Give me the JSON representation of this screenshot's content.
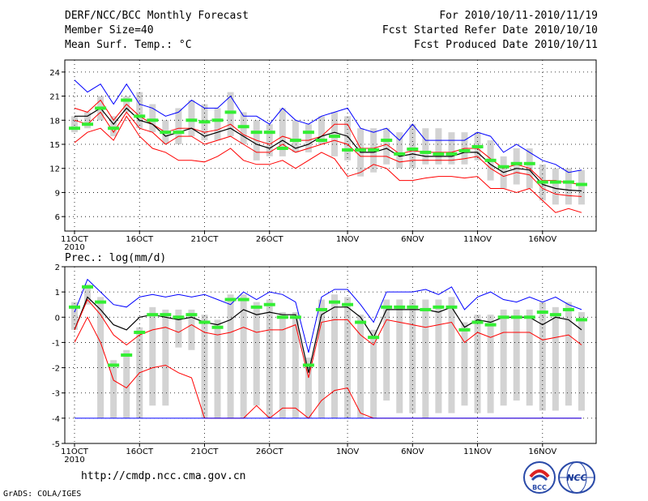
{
  "header": {
    "title": "DERF/NCC/BCC Monthly Forecast",
    "member": "Member Size=40",
    "variable": "Mean Surf. Temp.: °C",
    "period": "For 2010/10/11-2010/11/19",
    "started": "Fcst Started Refer Date 2010/10/10",
    "produced": "Fcst Produced Date 2010/10/11"
  },
  "footer": {
    "url": "http://cmdp.ncc.cma.gov.cn",
    "grads": "GrADS: COLA/IGES",
    "logo_bcc": "BCC",
    "logo_ncc": "NCC"
  },
  "colors": {
    "max": "#0000ff",
    "min": "#ff0000",
    "bar": "#d3d3d3",
    "obs": "#33ee33",
    "mean": "#000000"
  },
  "chart_data": [
    {
      "type": "line",
      "title": "Mean Surf. Temp.: °C",
      "ylim": [
        4.2,
        25.5
      ],
      "yticks": [
        6,
        9,
        12,
        15,
        18,
        21,
        24
      ],
      "x_labels": [
        "11OCT\n2010",
        "16OCT",
        "21OCT",
        "26OCT",
        "1NOV",
        "6NOV",
        "11NOV",
        "16NOV"
      ],
      "x_label_days": [
        1,
        6,
        11,
        16,
        22,
        27,
        32,
        37
      ],
      "days": 40,
      "series": [
        {
          "name": "max",
          "values": [
            23,
            21.5,
            22.5,
            20,
            22.5,
            20,
            19.5,
            18.5,
            19,
            20.5,
            19.5,
            19.5,
            21,
            18.5,
            18.5,
            17.5,
            19.5,
            18,
            17.5,
            18.5,
            19,
            19.5,
            17,
            16.5,
            17,
            15.5,
            17.5,
            15.5,
            15.5,
            15.5,
            15.5,
            16.5,
            16,
            14,
            15,
            14,
            13,
            12.5,
            11.5,
            11.8
          ]
        },
        {
          "name": "upper",
          "values": [
            19.5,
            19,
            20.5,
            18,
            20,
            18.5,
            17.5,
            16.5,
            17,
            17,
            16.5,
            16.8,
            17.5,
            16.2,
            15.5,
            15,
            16,
            15.5,
            15.5,
            16,
            17.5,
            17.5,
            14.5,
            14.5,
            15,
            13.8,
            14.2,
            14,
            14,
            14,
            14.5,
            14.5,
            13.2,
            12,
            12.5,
            12,
            10.5,
            10.5,
            10.2,
            10
          ]
        },
        {
          "name": "mean",
          "values": [
            18.5,
            18.5,
            19.5,
            17.5,
            19.5,
            18,
            17.5,
            16,
            16.5,
            17,
            16,
            16.5,
            17,
            16,
            15,
            14.5,
            15.5,
            14.5,
            15,
            16,
            16.5,
            16,
            14,
            14,
            14.5,
            13.5,
            13.8,
            13.5,
            13.5,
            13.5,
            14,
            14,
            12.5,
            11.5,
            12,
            11.8,
            10,
            9.5,
            9.3,
            9.2
          ]
        },
        {
          "name": "lower",
          "values": [
            18,
            17.5,
            19,
            16.5,
            19,
            17,
            16.5,
            15,
            16,
            16,
            15,
            15.5,
            16,
            15,
            14,
            14,
            15,
            14,
            14.5,
            15,
            15.5,
            15,
            13.5,
            13.5,
            13.5,
            12.8,
            13,
            13,
            13,
            13,
            13.2,
            13.5,
            12,
            11,
            11.5,
            11.2,
            9.5,
            8.8,
            8.6,
            8.5
          ]
        },
        {
          "name": "min",
          "values": [
            15.2,
            16.5,
            17,
            15.5,
            18.5,
            16,
            14.5,
            14,
            13,
            13,
            12.8,
            13.5,
            14.5,
            13,
            12.5,
            12.5,
            13,
            12,
            13,
            14,
            13.2,
            11,
            11.5,
            12.5,
            12,
            10.5,
            10.5,
            10.8,
            11,
            11,
            10.8,
            11,
            9.5,
            9.5,
            9,
            9.5,
            8,
            6.5,
            7,
            6.5
          ]
        },
        {
          "name": "obs",
          "values": [
            17,
            17.5,
            19.5,
            17,
            20.5,
            18.5,
            18,
            16.5,
            16.5,
            18,
            17.8,
            18,
            19,
            17.2,
            16.5,
            16.5,
            14.5,
            15.5,
            16.5,
            15.5,
            16,
            14.3,
            14.3,
            14.3,
            15.5,
            13.8,
            14.4,
            14,
            13.8,
            13.8,
            14.2,
            14.7,
            13,
            12.2,
            12.6,
            12.6,
            10.3,
            10.3,
            10.3,
            10
          ]
        }
      ],
      "bars": {
        "low": [
          16.5,
          17,
          18,
          16,
          19,
          17,
          16.5,
          15,
          15,
          16,
          15.5,
          15.5,
          16,
          15,
          13,
          13.5,
          13.5,
          14,
          14,
          15,
          13.5,
          13,
          11,
          11.5,
          12.5,
          12,
          12,
          12.5,
          12.5,
          12.5,
          12.5,
          13,
          10.5,
          9.5,
          10,
          9.5,
          8,
          7.5,
          7.5,
          7.5
        ],
        "high": [
          18.5,
          19,
          21,
          18.5,
          21,
          21.5,
          20,
          18,
          19.5,
          20.5,
          20,
          19.5,
          21.5,
          19,
          18,
          17.5,
          19.5,
          18,
          17.5,
          18.5,
          19,
          18.5,
          17,
          17,
          17,
          16.5,
          17.5,
          17,
          17,
          16.5,
          16.5,
          16.5,
          15.5,
          13.5,
          14.5,
          14.5,
          12.5,
          12,
          12,
          11.8
        ]
      }
    },
    {
      "type": "line",
      "title": "Prec.: log(mm/d)",
      "ylim": [
        -5,
        2
      ],
      "yticks": [
        -5,
        -4,
        -3,
        -2,
        -1,
        0,
        1,
        2
      ],
      "x_labels": [
        "11OCT\n2010",
        "16OCT",
        "21OCT",
        "26OCT",
        "1NOV",
        "6NOV",
        "11NOV",
        "16NOV"
      ],
      "x_label_days": [
        1,
        6,
        11,
        16,
        22,
        27,
        32,
        37
      ],
      "days": 40,
      "series": [
        {
          "name": "max",
          "values": [
            0.2,
            1.5,
            1,
            0.5,
            0.4,
            0.8,
            0.9,
            0.8,
            0.9,
            0.8,
            0.9,
            0.7,
            0.5,
            1,
            0.7,
            1,
            0.9,
            0.6,
            -1.4,
            0.8,
            1.1,
            1.1,
            0.5,
            -0.2,
            1,
            1,
            1,
            1.1,
            0.9,
            1.2,
            0.3,
            0.8,
            1,
            0.7,
            0.6,
            0.8,
            0.6,
            0.8,
            0.5,
            0.3
          ]
        },
        {
          "name": "mean",
          "values": [
            -0.5,
            0.8,
            0.3,
            -0.3,
            -0.5,
            0,
            0.1,
            0,
            -0.1,
            0,
            -0.2,
            -0.3,
            -0.1,
            0.3,
            0.1,
            0.2,
            0.1,
            0.1,
            -2.2,
            0.1,
            0.4,
            0.4,
            0,
            -0.8,
            0.3,
            0.3,
            0.3,
            0.3,
            0.2,
            0.4,
            -0.4,
            -0.1,
            -0.2,
            0,
            0,
            0,
            -0.3,
            0,
            -0.1,
            -0.5
          ]
        },
        {
          "name": "lower",
          "values": [
            -0.5,
            0.7,
            0.1,
            -0.7,
            -1.1,
            -0.7,
            -0.5,
            -0.4,
            -0.6,
            -0.3,
            -0.6,
            -0.7,
            -0.6,
            -0.4,
            -0.6,
            -0.5,
            -0.5,
            -0.3,
            -2.4,
            -0.2,
            -0.1,
            -0.1,
            -0.7,
            -1.1,
            -0.1,
            -0.2,
            -0.3,
            -0.4,
            -0.3,
            -0.2,
            -1,
            -0.6,
            -0.8,
            -0.6,
            -0.6,
            -0.6,
            -0.9,
            -0.8,
            -0.7,
            -1.1
          ]
        },
        {
          "name": "min",
          "values": [
            -1,
            0,
            -1,
            -2.5,
            -2.8,
            -2.2,
            -2,
            -1.9,
            -2.2,
            -2.4,
            -4,
            -4,
            -4,
            -4,
            -3.5,
            -4,
            -3.6,
            -3.6,
            -4,
            -3.3,
            -2.9,
            -2.8,
            -3.8,
            -4,
            -4,
            -4,
            -4,
            -4,
            -4,
            -4,
            -4,
            -4,
            -4,
            -4,
            -4,
            -4,
            -4,
            -4,
            -4,
            -4
          ]
        },
        {
          "name": "floor",
          "values": [
            -4,
            -4,
            -4,
            -4,
            -4,
            -4,
            -4,
            -4,
            -4,
            -4,
            -4,
            -4,
            -4,
            -4,
            -4,
            -4,
            -4,
            -4,
            -4,
            -4,
            -4,
            -4,
            -4,
            -4,
            -4,
            -4,
            -4,
            -4,
            -4,
            -4,
            -4,
            -4,
            -4,
            -4,
            -4,
            -4,
            -4,
            -4,
            -4,
            -4
          ]
        },
        {
          "name": "obs",
          "values": [
            0.4,
            1.2,
            0.6,
            -1.9,
            -1.5,
            -0.6,
            0.1,
            0.1,
            0,
            0.1,
            -0.2,
            -0.4,
            0.7,
            0.7,
            0.4,
            0.5,
            0,
            0,
            -1.9,
            0.3,
            0.6,
            0.5,
            -0.2,
            -0.8,
            0.4,
            0.4,
            0.4,
            0.3,
            0.4,
            0.4,
            -0.5,
            -0.2,
            -0.3,
            0,
            0,
            0,
            0.2,
            0.1,
            0.3,
            -0.1
          ]
        }
      ],
      "bars": {
        "low": [
          -0.5,
          0.5,
          -4,
          -4,
          -4,
          -4,
          -3.5,
          -3.5,
          -1.2,
          -1.3,
          -4,
          -4,
          -4,
          -4,
          -3.5,
          -4,
          -4,
          -4,
          -4,
          -4,
          -4,
          -4,
          -4,
          -4,
          -3.3,
          -3.8,
          -3.8,
          -4,
          -3.8,
          -3.8,
          -3.5,
          -3.8,
          -3.8,
          -3.5,
          -3.3,
          -3.5,
          -3.7,
          -3.7,
          -3.5,
          -3.7
        ],
        "high": [
          0.6,
          1.3,
          0.8,
          -1.7,
          -1.3,
          -0.4,
          0.4,
          0.3,
          0.3,
          0.3,
          0.1,
          -0.1,
          0.9,
          0.9,
          0.6,
          0.7,
          0.2,
          0.2,
          -1.6,
          0.7,
          0.9,
          0.8,
          0.1,
          -0.5,
          0.7,
          0.7,
          0.7,
          0.7,
          0.7,
          0.8,
          -0.2,
          0.1,
          0.1,
          0.3,
          0.3,
          0.3,
          0.6,
          0.4,
          0.6,
          0.2
        ]
      }
    }
  ]
}
